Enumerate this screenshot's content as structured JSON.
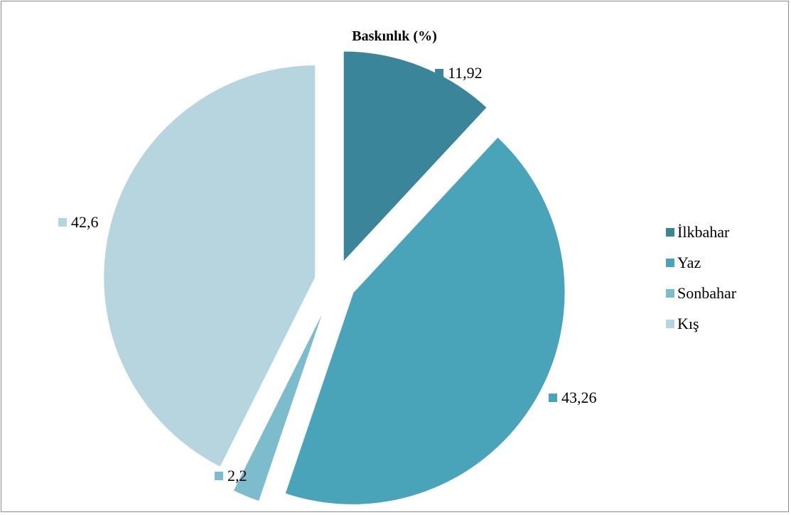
{
  "chart_data": {
    "type": "pie",
    "title": "Baskınlık (%)",
    "categories": [
      "İlkbahar",
      "Yaz",
      "Sonbahar",
      "Kış"
    ],
    "values": [
      11.92,
      43.26,
      2.2,
      42.6
    ],
    "data_labels": [
      "11,92",
      "43,26",
      "2,2",
      "42,6"
    ],
    "colors": [
      "#3a8599",
      "#49a3b9",
      "#7dbccd",
      "#b6d5df"
    ],
    "exploded": true,
    "legend": {
      "position": "right",
      "entries": [
        "İlkbahar",
        "Yaz",
        "Sonbahar",
        "Kış"
      ]
    }
  }
}
